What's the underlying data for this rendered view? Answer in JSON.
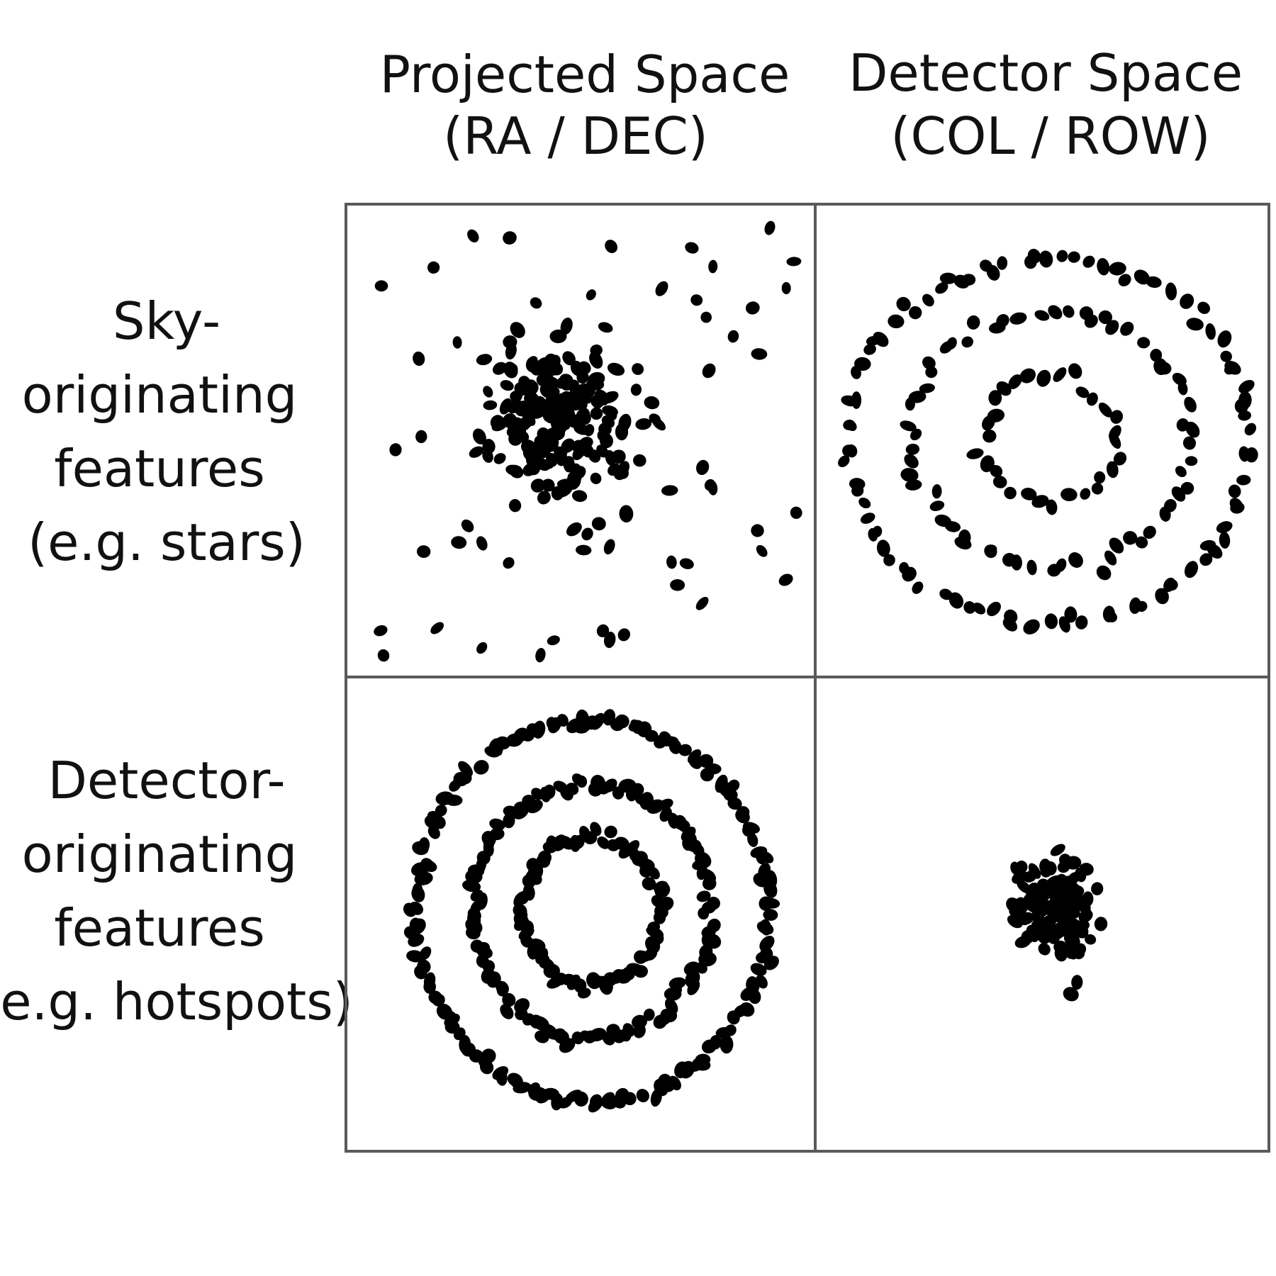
{
  "columns": [
    {
      "line1": "Projected Space",
      "line2": "(RA / DEC)"
    },
    {
      "line1": "Detector Space",
      "line2": "(COL / ROW)"
    }
  ],
  "rows": [
    {
      "lines": [
        "Sky-",
        "originating",
        "features",
        "(e.g. stars)"
      ]
    },
    {
      "lines": [
        "Detector-",
        "originating",
        "features",
        "(e.g. hotspots)"
      ]
    }
  ],
  "colors": {
    "grid": "#5a5a5a",
    "dots": "#000000",
    "text": "#111111"
  }
}
